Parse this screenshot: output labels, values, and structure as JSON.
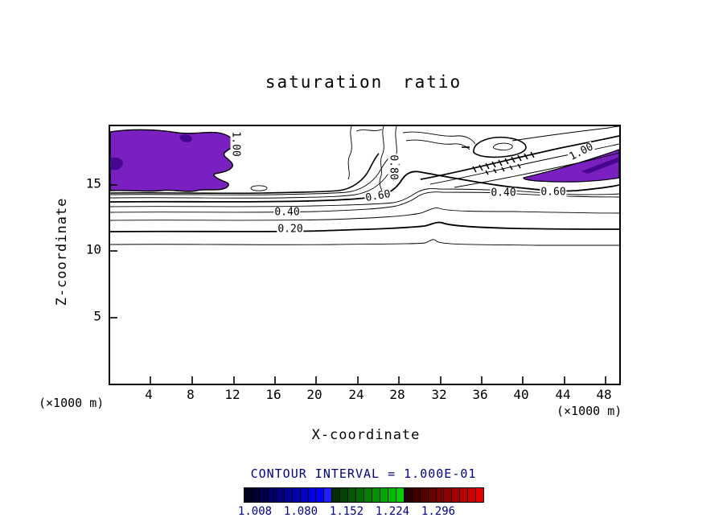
{
  "title": "saturation ratio",
  "y_axis": {
    "label": "Z-coordinate",
    "unit": "(×1000 m)",
    "ticks": [
      "15",
      "10",
      "5"
    ]
  },
  "x_axis": {
    "label": "X-coordinate",
    "unit": "(×1000 m)",
    "ticks": [
      "4",
      "8",
      "12",
      "16",
      "20",
      "24",
      "28",
      "32",
      "36",
      "40",
      "44",
      "48"
    ]
  },
  "contour_interval_text": "CONTOUR INTERVAL = 1.000E-01",
  "contour_labels": [
    "1.00",
    "0.80",
    "0.60",
    "0.40",
    "0.20",
    "0.40",
    "0.60",
    "1.00"
  ],
  "colors": {
    "supersaturated_fill": "#7a1fc0",
    "supersaturated_dark": "#45078f",
    "annotation_text": "#00008b",
    "line": "#000000"
  },
  "colorbar": {
    "labels": [
      "1.008",
      "1.080",
      "1.152",
      "1.224",
      "1.296"
    ],
    "colors": [
      "#000020",
      "#000038",
      "#000050",
      "#000068",
      "#000080",
      "#000098",
      "#0000b0",
      "#0000c8",
      "#0000e0",
      "#0000f8",
      "#2020ff",
      "#003000",
      "#004400",
      "#005800",
      "#006c00",
      "#008000",
      "#009400",
      "#00a800",
      "#00bc00",
      "#00d000",
      "#2c0000",
      "#400000",
      "#540000",
      "#680000",
      "#7c0000",
      "#900000",
      "#a40000",
      "#b80000",
      "#d00000",
      "#e80000"
    ]
  },
  "chart_data": {
    "type": "contour",
    "title": "saturation ratio",
    "xlabel": "X-coordinate",
    "ylabel": "Z-coordinate",
    "x_unit": "×1000 m",
    "y_unit": "×1000 m",
    "xlim": [
      0,
      50
    ],
    "ylim": [
      0,
      19.5
    ],
    "x_ticks": [
      4,
      8,
      12,
      16,
      20,
      24,
      28,
      32,
      36,
      40,
      44,
      48
    ],
    "y_ticks": [
      5,
      10,
      15
    ],
    "grid": false,
    "contour_interval": 0.1,
    "contour_interval_text": "CONTOUR INTERVAL = 1.000E-01",
    "labeled_contours": [
      {
        "level": 1.0,
        "x": 12.2,
        "z": 18.1,
        "orientation": "vertical"
      },
      {
        "level": 0.8,
        "x": 27.4,
        "z": 16.3,
        "orientation": "vertical"
      },
      {
        "level": 0.6,
        "x": 25.9,
        "z": 14.5,
        "orientation": "horizontal"
      },
      {
        "level": 0.4,
        "x": 17.1,
        "z": 13.3,
        "orientation": "horizontal"
      },
      {
        "level": 0.2,
        "x": 17.4,
        "z": 12.0,
        "orientation": "horizontal"
      },
      {
        "level": 0.4,
        "x": 38.0,
        "z": 14.8,
        "orientation": "horizontal"
      },
      {
        "level": 0.6,
        "x": 42.8,
        "z": 14.8,
        "orientation": "horizontal"
      },
      {
        "level": 1.0,
        "x": 45.6,
        "z": 18.0,
        "orientation": "diagonal"
      }
    ],
    "contour_heights": [
      {
        "level": 0.1,
        "approx_z_across_domain": 10.9
      },
      {
        "level": 0.2,
        "approx_z_across_domain": 11.9
      },
      {
        "level": 0.3,
        "approx_z_across_domain": 12.7
      },
      {
        "level": 0.4,
        "approx_z_across_domain": 13.3
      },
      {
        "level": 0.5,
        "approx_z_across_domain": 13.8
      },
      {
        "level": 0.6,
        "approx_z_across_domain": 14.2
      },
      {
        "level": 0.8,
        "approx_z_left": 14.9,
        "approx_z_right": 16.5
      },
      {
        "level": 1.0,
        "approx_z_left": 15.3,
        "approx_z_right": 17.8
      }
    ],
    "shaded_regions": [
      {
        "description": "supersaturated region (ratio > 1.0)",
        "color": "#7a1fc0",
        "x_range": [
          0,
          12.5
        ],
        "z_range": [
          15.0,
          19.3
        ],
        "location": "upper left"
      },
      {
        "description": "supersaturated region (ratio > 1.0)",
        "color": "#7a1fc0",
        "x_range": [
          40,
          50
        ],
        "z_range": [
          16.5,
          18.9
        ],
        "location": "upper right"
      }
    ],
    "features": [
      "stack of quasi-horizontal contours 0.1–1.0 between z≈11 and z≈15.5 spanning the full x-domain",
      "contours pinch sharply upward in a plume near x≈28–30",
      "closed contour loops (local maximum) near x≈37, z≈17.8",
      "dense hatched contour bundle sloping up-right from x≈36 to x≈50 toward upper-right supersaturated wedge"
    ],
    "colorbar": {
      "orientation": "horizontal",
      "tick_labels": [
        1.008,
        1.08,
        1.152,
        1.224,
        1.296
      ]
    }
  }
}
